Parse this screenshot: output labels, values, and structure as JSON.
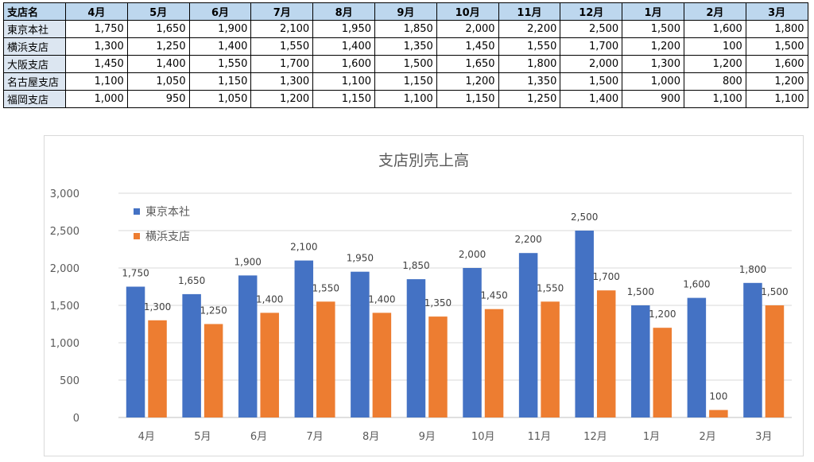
{
  "table": {
    "header": [
      "支店名",
      "4月",
      "5月",
      "6月",
      "7月",
      "8月",
      "9月",
      "10月",
      "11月",
      "12月",
      "1月",
      "2月",
      "3月"
    ],
    "rows": [
      {
        "branch": "東京本社",
        "values": [
          "1,750",
          "1,650",
          "1,900",
          "2,100",
          "1,950",
          "1,850",
          "2,000",
          "2,200",
          "2,500",
          "1,500",
          "1,600",
          "1,800"
        ]
      },
      {
        "branch": "横浜支店",
        "values": [
          "1,300",
          "1,250",
          "1,400",
          "1,550",
          "1,400",
          "1,350",
          "1,450",
          "1,550",
          "1,700",
          "1,200",
          "100",
          "1,500"
        ]
      },
      {
        "branch": "大阪支店",
        "values": [
          "1,450",
          "1,400",
          "1,550",
          "1,700",
          "1,600",
          "1,500",
          "1,650",
          "1,800",
          "2,000",
          "1,300",
          "1,200",
          "1,600"
        ]
      },
      {
        "branch": "名古屋支店",
        "values": [
          "1,100",
          "1,050",
          "1,150",
          "1,300",
          "1,100",
          "1,150",
          "1,200",
          "1,350",
          "1,500",
          "1,000",
          "800",
          "1,200"
        ]
      },
      {
        "branch": "福岡支店",
        "values": [
          "1,000",
          "950",
          "1,050",
          "1,200",
          "1,150",
          "1,100",
          "1,150",
          "1,250",
          "1,400",
          "900",
          "1,100",
          "1,100"
        ]
      }
    ]
  },
  "chart_data": {
    "type": "bar",
    "title": "支店別売上高",
    "categories": [
      "4月",
      "5月",
      "6月",
      "7月",
      "8月",
      "9月",
      "10月",
      "11月",
      "12月",
      "1月",
      "2月",
      "3月"
    ],
    "series": [
      {
        "name": "東京本社",
        "color": "#4472c4",
        "values": [
          1750,
          1650,
          1900,
          2100,
          1950,
          1850,
          2000,
          2200,
          2500,
          1500,
          1600,
          1800
        ]
      },
      {
        "name": "横浜支店",
        "color": "#ed7d31",
        "values": [
          1300,
          1250,
          1400,
          1550,
          1400,
          1350,
          1450,
          1550,
          1700,
          1200,
          100,
          1500
        ]
      }
    ],
    "ylim": [
      0,
      3000
    ],
    "yticks": [
      0,
      500,
      1000,
      1500,
      2000,
      2500,
      3000
    ],
    "grid": true,
    "legend": "top-left",
    "data_labels": true
  }
}
